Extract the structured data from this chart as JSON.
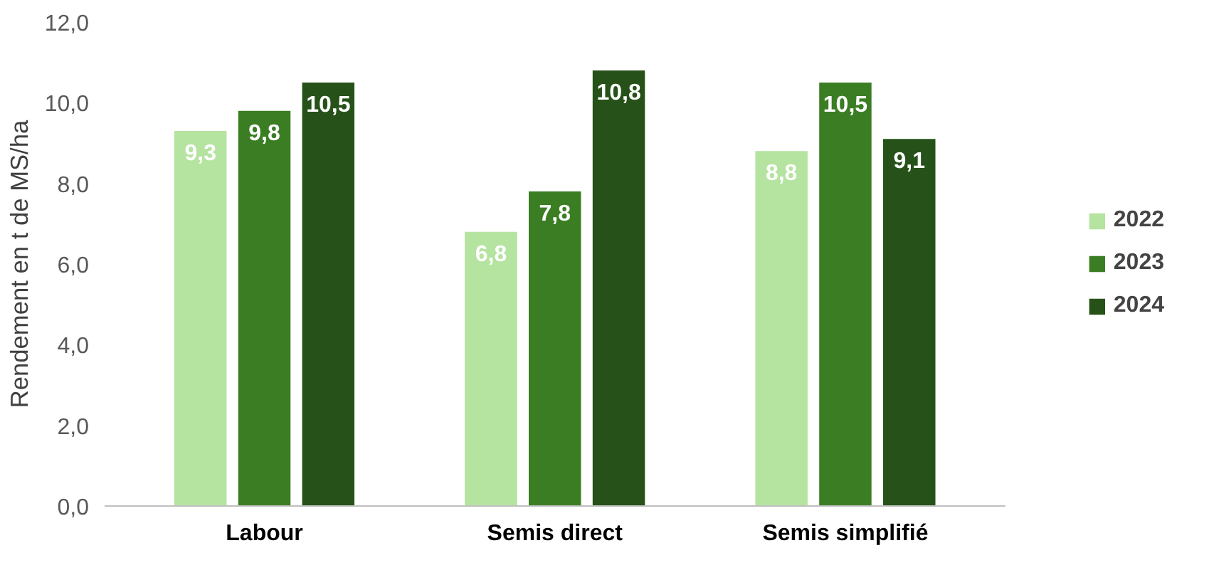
{
  "chart_data": {
    "type": "bar",
    "ylabel": "Rendement en t de MS/ha",
    "categories": [
      "Labour",
      "Semis direct",
      "Semis simplifié"
    ],
    "series": [
      {
        "name": "2022",
        "color": "#b5e3a0",
        "values": [
          9.3,
          6.8,
          8.8
        ],
        "value_labels": [
          "9,3",
          "6,8",
          "8,8"
        ]
      },
      {
        "name": "2023",
        "color": "#3b7d23",
        "values": [
          9.8,
          7.8,
          10.5
        ],
        "value_labels": [
          "9,8",
          "7,8",
          "10,5"
        ]
      },
      {
        "name": "2024",
        "color": "#265219",
        "values": [
          10.5,
          10.8,
          9.1
        ],
        "value_labels": [
          "10,5",
          "10,8",
          "9,1"
        ]
      }
    ],
    "ylim": [
      0,
      12
    ],
    "yticks": [
      {
        "value": 0,
        "label": "0,0"
      },
      {
        "value": 2,
        "label": "2,0"
      },
      {
        "value": 4,
        "label": "4,0"
      },
      {
        "value": 6,
        "label": "6,0"
      },
      {
        "value": 8,
        "label": "8,0"
      },
      {
        "value": 10,
        "label": "10,0"
      },
      {
        "value": 12,
        "label": "12,0"
      }
    ],
    "grid": false,
    "legend": "right"
  }
}
